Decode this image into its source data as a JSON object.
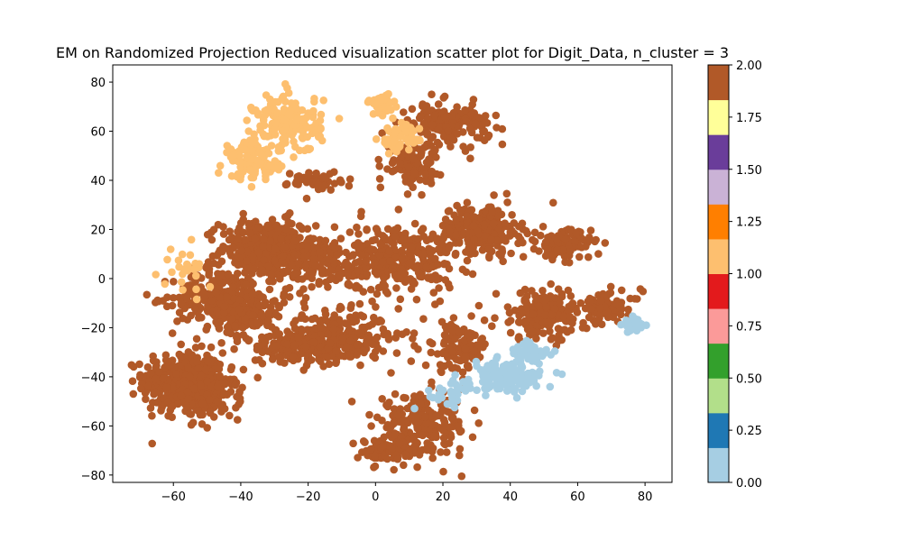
{
  "chart_data": {
    "type": "scatter",
    "title": "EM on Randomized Projection Reduced visualization scatter plot for Digit_Data, n_cluster = 3",
    "xlim": [
      -78,
      88
    ],
    "ylim": [
      -83,
      87
    ],
    "xticks": [
      -60,
      -40,
      -20,
      0,
      20,
      40,
      60,
      80
    ],
    "yticks": [
      -80,
      -60,
      -40,
      -20,
      0,
      20,
      40,
      60,
      80
    ],
    "xtick_labels": [
      "−60",
      "−40",
      "−20",
      "0",
      "20",
      "40",
      "60",
      "80"
    ],
    "ytick_labels": [
      "−80",
      "−60",
      "−40",
      "−20",
      "0",
      "20",
      "40",
      "60",
      "80"
    ],
    "grid": false,
    "colorbar": {
      "range": [
        0,
        2
      ],
      "ticks": [
        0,
        0.25,
        0.5,
        0.75,
        1,
        1.25,
        1.5,
        1.75,
        2
      ],
      "tick_labels": [
        "0.00",
        "0.25",
        "0.50",
        "0.75",
        "1.00",
        "1.25",
        "1.50",
        "1.75",
        "2.00"
      ],
      "colormap": [
        "#a6cee3",
        "#1f78b4",
        "#b2df8a",
        "#33a02c",
        "#fb9a99",
        "#e31a1c",
        "#fdbf6f",
        "#ff7f00",
        "#cab2d6",
        "#6a3d9a",
        "#ffff99",
        "#b15928"
      ]
    },
    "cluster_colors": {
      "0": "#a6cee3",
      "1": "#fdbf6f",
      "2": "#b15928"
    },
    "clusters": [
      {
        "label": 2,
        "center": [
          -57,
          -42
        ],
        "spread": [
          6,
          6
        ],
        "count": 420
      },
      {
        "label": 2,
        "center": [
          -50,
          -47
        ],
        "spread": [
          5,
          5
        ],
        "count": 160
      },
      {
        "label": 2,
        "center": [
          -32,
          12
        ],
        "spread": [
          7,
          6
        ],
        "count": 360
      },
      {
        "label": 2,
        "center": [
          -46,
          -8
        ],
        "spread": [
          7,
          6
        ],
        "count": 260
      },
      {
        "label": 2,
        "center": [
          -37,
          -14
        ],
        "spread": [
          5,
          5
        ],
        "count": 120
      },
      {
        "label": 2,
        "center": [
          -12,
          -24
        ],
        "spread": [
          8,
          5
        ],
        "count": 280
      },
      {
        "label": 2,
        "center": [
          -24,
          -28
        ],
        "spread": [
          6,
          3
        ],
        "count": 120
      },
      {
        "label": 2,
        "center": [
          6,
          8
        ],
        "spread": [
          9,
          7
        ],
        "count": 330
      },
      {
        "label": 2,
        "center": [
          -18,
          6
        ],
        "spread": [
          5,
          6
        ],
        "count": 100
      },
      {
        "label": 2,
        "center": [
          31,
          20
        ],
        "spread": [
          6,
          5
        ],
        "count": 240
      },
      {
        "label": 2,
        "center": [
          56,
          14
        ],
        "spread": [
          4,
          3
        ],
        "count": 130
      },
      {
        "label": 2,
        "center": [
          50,
          -15
        ],
        "spread": [
          7,
          5
        ],
        "count": 190
      },
      {
        "label": 2,
        "center": [
          69,
          -11
        ],
        "spread": [
          5,
          3
        ],
        "count": 70
      },
      {
        "label": 2,
        "center": [
          14,
          -60
        ],
        "spread": [
          7,
          6
        ],
        "count": 220
      },
      {
        "label": 2,
        "center": [
          4,
          -70
        ],
        "spread": [
          4,
          3
        ],
        "count": 80
      },
      {
        "label": 2,
        "center": [
          24,
          -28
        ],
        "spread": [
          5,
          5
        ],
        "count": 110
      },
      {
        "label": 2,
        "center": [
          22,
          63
        ],
        "spread": [
          6,
          4
        ],
        "count": 170
      },
      {
        "label": 2,
        "center": [
          11,
          47
        ],
        "spread": [
          4,
          4
        ],
        "count": 110
      },
      {
        "label": 2,
        "center": [
          -18,
          40
        ],
        "spread": [
          4,
          2
        ],
        "count": 50
      },
      {
        "label": 1,
        "center": [
          -26,
          63
        ],
        "spread": [
          5,
          6
        ],
        "count": 170
      },
      {
        "label": 1,
        "center": [
          -36,
          48
        ],
        "spread": [
          4,
          4
        ],
        "count": 110
      },
      {
        "label": 1,
        "center": [
          2,
          71
        ],
        "spread": [
          2,
          2
        ],
        "count": 40
      },
      {
        "label": 1,
        "center": [
          7,
          57
        ],
        "spread": [
          3,
          3
        ],
        "count": 50
      },
      {
        "label": 1,
        "center": [
          -56,
          4
        ],
        "spread": [
          4,
          5
        ],
        "count": 25
      },
      {
        "label": 0,
        "center": [
          39,
          -40
        ],
        "spread": [
          5,
          3
        ],
        "count": 150
      },
      {
        "label": 0,
        "center": [
          46,
          -31
        ],
        "spread": [
          3,
          3
        ],
        "count": 40
      },
      {
        "label": 0,
        "center": [
          77,
          -19
        ],
        "spread": [
          2,
          2
        ],
        "count": 25
      },
      {
        "label": 0,
        "center": [
          22,
          -47
        ],
        "spread": [
          4,
          3
        ],
        "count": 30
      }
    ]
  }
}
